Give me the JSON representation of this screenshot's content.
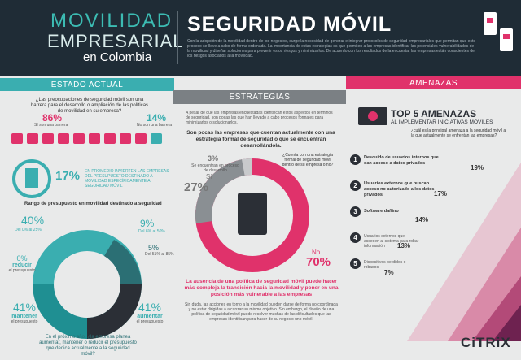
{
  "header": {
    "title_word1": "MOVILIDAD",
    "title_word2": "EMPRESARIAL",
    "title_sub": "en Colombia",
    "main_title": "SEGURIDAD MÓVIL",
    "intro": "Con la adopción de la movilidad dentro de los negocios, surge la necesidad de generar e integrar protocolos de seguridad empresariales que permitan que este proceso se lleve a cabo de forma ordenada. La importancia de estas estrategias es que permiten a las empresas identificar las potenciales vulnerabilidades de la movilidad y diseñar soluciones para prevenir estos riesgos y minimizarlos. De acuerdo con los resultados de la encuesta, las empresas están conscientes de los riesgos asociados a la movilidad."
  },
  "estado": {
    "heading": "ESTADO ACTUAL",
    "question": "¿Las preocupaciones de seguridad móvil son una barrera para el desarrollo o ampliación de las políticas de movilidad en su empresa?",
    "yes_pct": "86%",
    "yes_label": "Sí son una barrera",
    "no_pct": "14%",
    "no_label": "No son una barrera",
    "infra_pct": "17%",
    "infra_text": "EN PROMEDIO INVIERTEN LAS EMPRESAS DEL PRESUPUESTO DESTINADO A MOVILIDAD ESPECÍFICAMENTE A SEGURIDAD MÓVIL",
    "range_title": "Rango de presupuesto en movilidad destinado a seguridad",
    "range": [
      {
        "pct": "40%",
        "label": "Del 0% al 25%"
      },
      {
        "pct": "9%",
        "label": "Del 6% al 50%"
      },
      {
        "pct": "5%",
        "label": "Del 51% al 85%"
      }
    ],
    "plans": [
      {
        "pct": "0%",
        "word": "reducir",
        "rest": "el presupuesto"
      },
      {
        "pct": "41%",
        "word": "mantener",
        "rest": "el presupuesto"
      },
      {
        "pct": "41%",
        "word": "aumentar",
        "rest": "el presupuesto"
      }
    ],
    "future_q": "En el próximo año, ¿la empresa planea aumentar, mantener o reducir el presupuesto que dedica actualmente a la seguridad móvil?"
  },
  "estrategias": {
    "heading": "ESTRATEGIAS",
    "intro": "A pesar de que las empresas encuestadas identifican estos aspectos en términos de seguridad, son pocas las que han llevado a cabo procesos formales para minimizarlos o solucionarlos.",
    "question": "Son pocas las empresas que cuentan actualmente con una estrategia formal de seguridad o que se encuentran desarrollándola.",
    "donut_q": "¿Cuenta con una estrategia formal de seguridad móvil dentro de su empresa o no?",
    "dev_pct": "3%",
    "dev_label": "Se encuentran en proceso de desarrollo",
    "yes_label": "Sí",
    "yes_pct": "27%",
    "no_label": "No",
    "no_pct": "70%",
    "highlight": "La ausencia de una política de seguridad móvil puede hacer más compleja la transición hacia la movilidad y poner en una posición más vulnerable a las empresas",
    "closing": "Sin duda, las acciones en torno a la movilidad pueden darse de forma no coordinada y no estar dirigidas a alcanzar un mismo objetivo. Sin embargo, el diseño de una política de seguridad móvil puede resolver muchas de las dificultades que las empresas identifican para hacer de su negocio uno móvil."
  },
  "amenazas": {
    "heading": "AMENAZAS",
    "title": "TOP 5 AMENAZAS",
    "subtitle": "AL IMPLEMENTAR INICIATIVAS MÓVILES",
    "question": "¿cuál es la principal amenaza a la seguridad móvil a la que actualmente se enfrentan las empresas?",
    "items": [
      {
        "num": "1",
        "text": "Descuido de usuarios internos que dan acceso a datos privados",
        "pct": "19%"
      },
      {
        "num": "2",
        "text": "Usuarios externos que buscan acceso no autorizado a los datos privados",
        "pct": "17%"
      },
      {
        "num": "3",
        "text": "Software dañino",
        "pct": "14%"
      },
      {
        "num": "4",
        "text": "Usuarios externos que acceden al sistema para robar información",
        "pct": "13%"
      },
      {
        "num": "5",
        "text": "Dispositivos perdidos o robados",
        "pct": "7%"
      }
    ]
  },
  "brand": "CiTRiX"
}
